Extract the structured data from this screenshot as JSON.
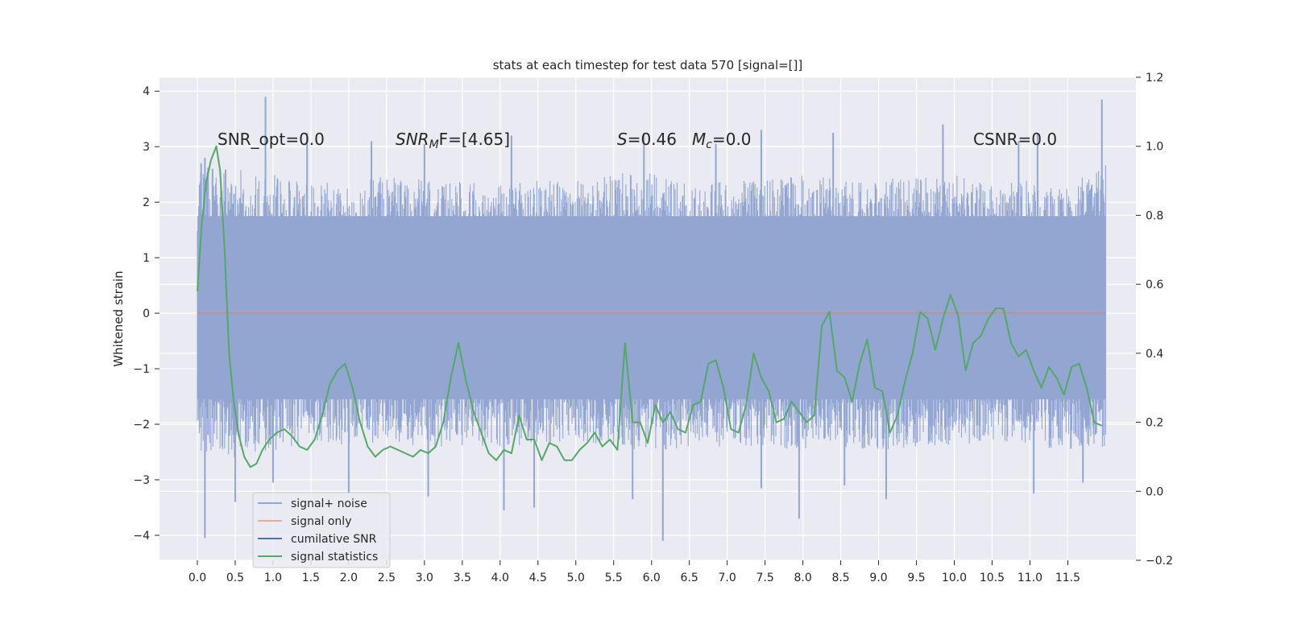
{
  "chart_data": {
    "type": "line",
    "title": "stats at each timestep for test data 570 [signal=[]]",
    "ylabel": "Whitened strain",
    "xlabel": "",
    "xlim": [
      -0.5,
      12.4
    ],
    "ylim": [
      -4.45,
      4.25
    ],
    "y2lim": [
      -0.2,
      1.2
    ],
    "x_ticks": [
      0.0,
      0.5,
      1.0,
      1.5,
      2.0,
      2.5,
      3.0,
      3.5,
      4.0,
      4.5,
      5.0,
      5.5,
      6.0,
      6.5,
      7.0,
      7.5,
      8.0,
      8.5,
      9.0,
      9.5,
      10.0,
      10.5,
      11.0,
      11.5
    ],
    "x_tick_labels": [
      "0.0",
      "0.5",
      "1.0",
      "1.5",
      "2.0",
      "2.5",
      "3.0",
      "3.5",
      "4.0",
      "4.5",
      "5.0",
      "5.5",
      "6.0",
      "6.5",
      "7.0",
      "7.5",
      "8.0",
      "8.5",
      "9.0",
      "9.5",
      "10.0",
      "10.5",
      "11.0",
      "11.5"
    ],
    "y_ticks": [
      -4,
      -3,
      -2,
      -1,
      0,
      1,
      2,
      3,
      4
    ],
    "y_tick_labels": [
      "−4",
      "−3",
      "−2",
      "−1",
      "0",
      "1",
      "2",
      "3",
      "4"
    ],
    "y2_ticks": [
      -0.2,
      0.0,
      0.2,
      0.4,
      0.6,
      0.8,
      1.0,
      1.2
    ],
    "y2_tick_labels": [
      "−0.2",
      "0.0",
      "0.2",
      "0.4",
      "0.6",
      "0.8",
      "1.0",
      "1.2"
    ],
    "grid": true,
    "legend_placement": "lower-left",
    "annotations": {
      "snr_opt": "SNR_opt=0.0",
      "snr_mf_main": "SNR",
      "snr_mf_sub": "M",
      "snr_mf_rest": "F=[4.65]",
      "s_main": "S",
      "s_rest": "=0.46",
      "mc_main": "M",
      "mc_sub": "c",
      "mc_rest": "=0.0",
      "csnr": "CSNR=0.0"
    },
    "noise_envelope": {
      "x": [
        0.0,
        0.5,
        1.0,
        1.5,
        2.0,
        2.5,
        3.0,
        3.5,
        4.0,
        4.5,
        5.0,
        5.5,
        6.0,
        6.5,
        7.0,
        7.5,
        8.0,
        8.5,
        9.0,
        9.5,
        10.0,
        10.5,
        11.0,
        11.5,
        12.0
      ],
      "upper": [
        2.7,
        2.6,
        2.5,
        2.4,
        2.3,
        2.5,
        2.4,
        2.4,
        2.3,
        2.4,
        2.4,
        2.5,
        2.6,
        2.3,
        2.4,
        2.4,
        2.5,
        2.4,
        2.4,
        2.5,
        2.5,
        2.3,
        2.4,
        2.3,
        2.7
      ],
      "lower": [
        -2.5,
        -2.6,
        -2.5,
        -2.3,
        -2.4,
        -2.3,
        -2.5,
        -2.4,
        -2.4,
        -2.4,
        -2.3,
        -2.4,
        -2.5,
        -2.4,
        -2.4,
        -2.4,
        -2.5,
        -2.4,
        -2.5,
        -2.4,
        -2.4,
        -2.3,
        -2.4,
        -2.5,
        -2.4
      ],
      "spikes_up": [
        [
          0.05,
          2.7
        ],
        [
          0.1,
          2.8
        ],
        [
          0.2,
          2.6
        ],
        [
          0.9,
          3.9
        ],
        [
          1.45,
          3.25
        ],
        [
          2.3,
          3.1
        ],
        [
          3.0,
          3.05
        ],
        [
          4.15,
          3.2
        ],
        [
          5.9,
          3.25
        ],
        [
          6.85,
          3.05
        ],
        [
          7.45,
          3.3
        ],
        [
          8.4,
          3.25
        ],
        [
          9.85,
          3.4
        ],
        [
          10.85,
          3.1
        ],
        [
          11.1,
          3.25
        ],
        [
          11.95,
          3.85
        ]
      ],
      "spikes_down": [
        [
          0.1,
          -4.05
        ],
        [
          0.5,
          -3.4
        ],
        [
          1.0,
          -3.05
        ],
        [
          2.0,
          -3.25
        ],
        [
          3.05,
          -3.3
        ],
        [
          4.05,
          -3.55
        ],
        [
          4.45,
          -3.5
        ],
        [
          5.75,
          -3.35
        ],
        [
          6.15,
          -4.1
        ],
        [
          7.45,
          -3.15
        ],
        [
          7.95,
          -3.7
        ],
        [
          8.55,
          -3.1
        ],
        [
          9.1,
          -3.35
        ],
        [
          11.05,
          -3.25
        ],
        [
          11.7,
          -3.05
        ]
      ]
    },
    "series": [
      {
        "name": "signal+ noise",
        "color": "#92a6d1",
        "axis": "left"
      },
      {
        "name": "signal only",
        "color": "#dd8452",
        "axis": "left",
        "x": [
          0.0,
          12.0
        ],
        "y": [
          0.0,
          0.0
        ]
      },
      {
        "name": "cumilative SNR",
        "color": "#4c72b0",
        "axis": "left"
      },
      {
        "name": "signal statistics",
        "color": "#55a868",
        "axis": "right",
        "x": [
          0.0,
          0.06,
          0.12,
          0.18,
          0.25,
          0.3,
          0.36,
          0.42,
          0.48,
          0.55,
          0.62,
          0.7,
          0.78,
          0.86,
          0.95,
          1.05,
          1.15,
          1.25,
          1.35,
          1.45,
          1.55,
          1.65,
          1.75,
          1.85,
          1.95,
          2.05,
          2.15,
          2.25,
          2.35,
          2.45,
          2.55,
          2.65,
          2.75,
          2.85,
          2.95,
          3.05,
          3.15,
          3.25,
          3.35,
          3.45,
          3.55,
          3.65,
          3.75,
          3.85,
          3.95,
          4.05,
          4.15,
          4.25,
          4.35,
          4.45,
          4.55,
          4.65,
          4.75,
          4.85,
          4.95,
          5.05,
          5.15,
          5.25,
          5.35,
          5.45,
          5.55,
          5.65,
          5.75,
          5.85,
          5.95,
          6.05,
          6.15,
          6.25,
          6.35,
          6.45,
          6.55,
          6.65,
          6.75,
          6.85,
          6.95,
          7.05,
          7.15,
          7.25,
          7.35,
          7.45,
          7.55,
          7.65,
          7.75,
          7.85,
          7.95,
          8.05,
          8.15,
          8.25,
          8.35,
          8.45,
          8.55,
          8.65,
          8.75,
          8.85,
          8.95,
          9.05,
          9.15,
          9.25,
          9.35,
          9.45,
          9.55,
          9.65,
          9.75,
          9.85,
          9.95,
          10.05,
          10.15,
          10.25,
          10.35,
          10.45,
          10.55,
          10.65,
          10.75,
          10.85,
          10.95,
          11.05,
          11.15,
          11.25,
          11.35,
          11.45,
          11.55,
          11.65,
          11.75,
          11.85,
          11.95
        ],
        "y": [
          0.58,
          0.78,
          0.9,
          0.96,
          1.0,
          0.93,
          0.7,
          0.4,
          0.26,
          0.16,
          0.1,
          0.07,
          0.08,
          0.12,
          0.15,
          0.17,
          0.18,
          0.16,
          0.13,
          0.12,
          0.15,
          0.22,
          0.31,
          0.35,
          0.37,
          0.3,
          0.2,
          0.13,
          0.1,
          0.12,
          0.13,
          0.12,
          0.11,
          0.1,
          0.12,
          0.11,
          0.13,
          0.2,
          0.33,
          0.43,
          0.32,
          0.23,
          0.17,
          0.11,
          0.09,
          0.12,
          0.11,
          0.22,
          0.15,
          0.15,
          0.09,
          0.14,
          0.13,
          0.09,
          0.09,
          0.12,
          0.14,
          0.17,
          0.13,
          0.15,
          0.12,
          0.43,
          0.2,
          0.2,
          0.14,
          0.25,
          0.2,
          0.23,
          0.18,
          0.17,
          0.25,
          0.26,
          0.37,
          0.38,
          0.3,
          0.18,
          0.17,
          0.25,
          0.4,
          0.33,
          0.29,
          0.2,
          0.21,
          0.26,
          0.23,
          0.2,
          0.22,
          0.48,
          0.52,
          0.35,
          0.33,
          0.26,
          0.37,
          0.44,
          0.3,
          0.29,
          0.17,
          0.22,
          0.32,
          0.4,
          0.52,
          0.5,
          0.41,
          0.5,
          0.57,
          0.51,
          0.35,
          0.43,
          0.45,
          0.5,
          0.53,
          0.53,
          0.43,
          0.39,
          0.41,
          0.35,
          0.3,
          0.36,
          0.33,
          0.28,
          0.36,
          0.37,
          0.3,
          0.2,
          0.19
        ]
      }
    ]
  }
}
